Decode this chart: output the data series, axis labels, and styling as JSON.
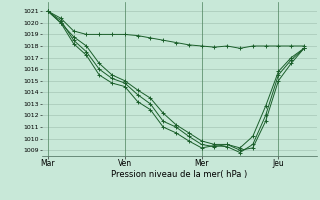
{
  "xlabel": "Pression niveau de la mer( hPa )",
  "bg_color": "#c8e8d8",
  "grid_color": "#9dbdad",
  "line_color": "#1a5e2a",
  "ylim": [
    1008.5,
    1021.8
  ],
  "yticks": [
    1009,
    1010,
    1011,
    1012,
    1013,
    1014,
    1015,
    1016,
    1017,
    1018,
    1019,
    1020,
    1021
  ],
  "day_labels": [
    "Mar",
    "Ven",
    "Mer",
    "Jeu"
  ],
  "day_positions": [
    0,
    36,
    72,
    108
  ],
  "xlim": [
    -3,
    126
  ],
  "lines": [
    {
      "x": [
        0,
        6,
        12,
        18,
        24,
        30,
        36,
        42,
        48,
        54,
        60,
        66,
        72,
        78,
        84,
        90,
        96,
        102,
        108,
        114,
        120
      ],
      "y": [
        1021.0,
        1020.4,
        1019.3,
        1019.0,
        1019.0,
        1019.0,
        1019.0,
        1018.9,
        1018.7,
        1018.5,
        1018.3,
        1018.1,
        1018.0,
        1017.9,
        1018.0,
        1017.8,
        1018.0,
        1018.0,
        1018.0,
        1018.0,
        1018.0
      ]
    },
    {
      "x": [
        0,
        6,
        12,
        18,
        24,
        30,
        36,
        42,
        48,
        54,
        60,
        66,
        72,
        78,
        84,
        90,
        96,
        102,
        108,
        114,
        120
      ],
      "y": [
        1021.0,
        1020.2,
        1018.5,
        1017.5,
        1016.0,
        1015.2,
        1014.8,
        1013.8,
        1013.0,
        1011.5,
        1011.0,
        1010.2,
        1009.5,
        1009.3,
        1009.5,
        1009.0,
        1009.2,
        1011.5,
        1015.0,
        1016.5,
        1017.8
      ]
    },
    {
      "x": [
        0,
        6,
        12,
        18,
        24,
        30,
        36,
        42,
        48,
        54,
        60,
        66,
        72,
        78,
        84,
        90,
        96,
        102,
        108,
        114,
        120
      ],
      "y": [
        1021.0,
        1020.0,
        1018.2,
        1017.2,
        1015.5,
        1014.8,
        1014.5,
        1013.2,
        1012.5,
        1011.0,
        1010.5,
        1009.8,
        1009.2,
        1009.4,
        1009.3,
        1008.8,
        1009.5,
        1012.0,
        1015.5,
        1016.8,
        1017.8
      ]
    },
    {
      "x": [
        0,
        6,
        12,
        18,
        24,
        30,
        36,
        42,
        48,
        54,
        60,
        66,
        72,
        78,
        84,
        90,
        96,
        102,
        108,
        114,
        120
      ],
      "y": [
        1021.0,
        1020.0,
        1018.8,
        1018.0,
        1016.5,
        1015.5,
        1015.0,
        1014.2,
        1013.5,
        1012.2,
        1011.2,
        1010.5,
        1009.8,
        1009.5,
        1009.5,
        1009.2,
        1010.2,
        1012.8,
        1015.8,
        1017.0,
        1017.8
      ]
    }
  ]
}
